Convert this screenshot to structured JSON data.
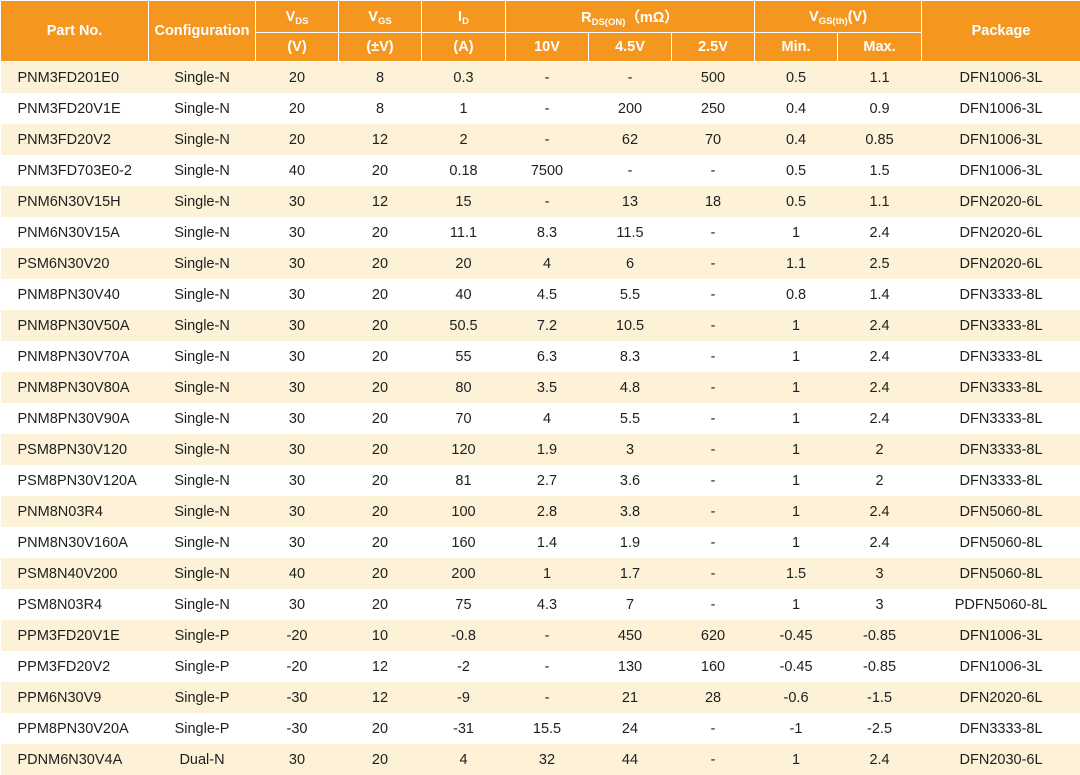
{
  "header": {
    "part_no": "Part No.",
    "configuration": "Configuration",
    "vds": {
      "main": "V",
      "sub": "DS",
      "unit": "(V)"
    },
    "vgs": {
      "main": "V",
      "sub": "GS",
      "unit": "(±V)"
    },
    "id": {
      "main": "I",
      "sub": "D",
      "unit": "(A)"
    },
    "rds": {
      "main": "R",
      "sub": "DS(ON)",
      "rest": "（mΩ）",
      "c10v": "10V",
      "c45v": "4.5V",
      "c25v": "2.5V"
    },
    "vgsth": {
      "main": "V",
      "sub": "GS(th)",
      "rest": "(V)",
      "min": "Min.",
      "max": "Max."
    },
    "package": "Package"
  },
  "rows": [
    [
      "PNM3FD201E0",
      "Single-N",
      "20",
      "8",
      "0.3",
      "-",
      "-",
      "500",
      "0.5",
      "1.1",
      "DFN1006-3L"
    ],
    [
      "PNM3FD20V1E",
      "Single-N",
      "20",
      "8",
      "1",
      "-",
      "200",
      "250",
      "0.4",
      "0.9",
      "DFN1006-3L"
    ],
    [
      "PNM3FD20V2",
      "Single-N",
      "20",
      "12",
      "2",
      "-",
      "62",
      "70",
      "0.4",
      "0.85",
      "DFN1006-3L"
    ],
    [
      "PNM3FD703E0-2",
      "Single-N",
      "40",
      "20",
      "0.18",
      "7500",
      "-",
      "-",
      "0.5",
      "1.5",
      "DFN1006-3L"
    ],
    [
      "PNM6N30V15H",
      "Single-N",
      "30",
      "12",
      "15",
      "-",
      "13",
      "18",
      "0.5",
      "1.1",
      "DFN2020-6L"
    ],
    [
      "PNM6N30V15A",
      "Single-N",
      "30",
      "20",
      "11.1",
      "8.3",
      "11.5",
      "-",
      "1",
      "2.4",
      "DFN2020-6L"
    ],
    [
      "PSM6N30V20",
      "Single-N",
      "30",
      "20",
      "20",
      "4",
      "6",
      "-",
      "1.1",
      "2.5",
      "DFN2020-6L"
    ],
    [
      "PNM8PN30V40",
      "Single-N",
      "30",
      "20",
      "40",
      "4.5",
      "5.5",
      "-",
      "0.8",
      "1.4",
      "DFN3333-8L"
    ],
    [
      "PNM8PN30V50A",
      "Single-N",
      "30",
      "20",
      "50.5",
      "7.2",
      "10.5",
      "-",
      "1",
      "2.4",
      "DFN3333-8L"
    ],
    [
      "PNM8PN30V70A",
      "Single-N",
      "30",
      "20",
      "55",
      "6.3",
      "8.3",
      "-",
      "1",
      "2.4",
      "DFN3333-8L"
    ],
    [
      "PNM8PN30V80A",
      "Single-N",
      "30",
      "20",
      "80",
      "3.5",
      "4.8",
      "-",
      "1",
      "2.4",
      "DFN3333-8L"
    ],
    [
      "PNM8PN30V90A",
      "Single-N",
      "30",
      "20",
      "70",
      "4",
      "5.5",
      "-",
      "1",
      "2.4",
      "DFN3333-8L"
    ],
    [
      "PSM8PN30V120",
      "Single-N",
      "30",
      "20",
      "120",
      "1.9",
      "3",
      "-",
      "1",
      "2",
      "DFN3333-8L"
    ],
    [
      "PSM8PN30V120A",
      "Single-N",
      "30",
      "20",
      "81",
      "2.7",
      "3.6",
      "-",
      "1",
      "2",
      "DFN3333-8L"
    ],
    [
      "PNM8N03R4",
      "Single-N",
      "30",
      "20",
      "100",
      "2.8",
      "3.8",
      "-",
      "1",
      "2.4",
      "DFN5060-8L"
    ],
    [
      "PNM8N30V160A",
      "Single-N",
      "30",
      "20",
      "160",
      "1.4",
      "1.9",
      "-",
      "1",
      "2.4",
      "DFN5060-8L"
    ],
    [
      "PSM8N40V200",
      "Single-N",
      "40",
      "20",
      "200",
      "1",
      "1.7",
      "-",
      "1.5",
      "3",
      "DFN5060-8L"
    ],
    [
      "PSM8N03R4",
      "Single-N",
      "30",
      "20",
      "75",
      "4.3",
      "7",
      "-",
      "1",
      "3",
      "PDFN5060-8L"
    ],
    [
      "PPM3FD20V1E",
      "Single-P",
      "-20",
      "10",
      "-0.8",
      "-",
      "450",
      "620",
      "-0.45",
      "-0.85",
      "DFN1006-3L"
    ],
    [
      "PPM3FD20V2",
      "Single-P",
      "-20",
      "12",
      "-2",
      "-",
      "130",
      "160",
      "-0.45",
      "-0.85",
      "DFN1006-3L"
    ],
    [
      "PPM6N30V9",
      "Single-P",
      "-30",
      "12",
      "-9",
      "-",
      "21",
      "28",
      "-0.6",
      "-1.5",
      "DFN2020-6L"
    ],
    [
      "PPM8PN30V20A",
      "Single-P",
      "-30",
      "20",
      "-31",
      "15.5",
      "24",
      "-",
      "-1",
      "-2.5",
      "DFN3333-8L"
    ],
    [
      "PDNM6N30V4A",
      "Dual-N",
      "30",
      "20",
      "4",
      "32",
      "44",
      "-",
      "1",
      "2.4",
      "DFN2030-6L"
    ]
  ]
}
